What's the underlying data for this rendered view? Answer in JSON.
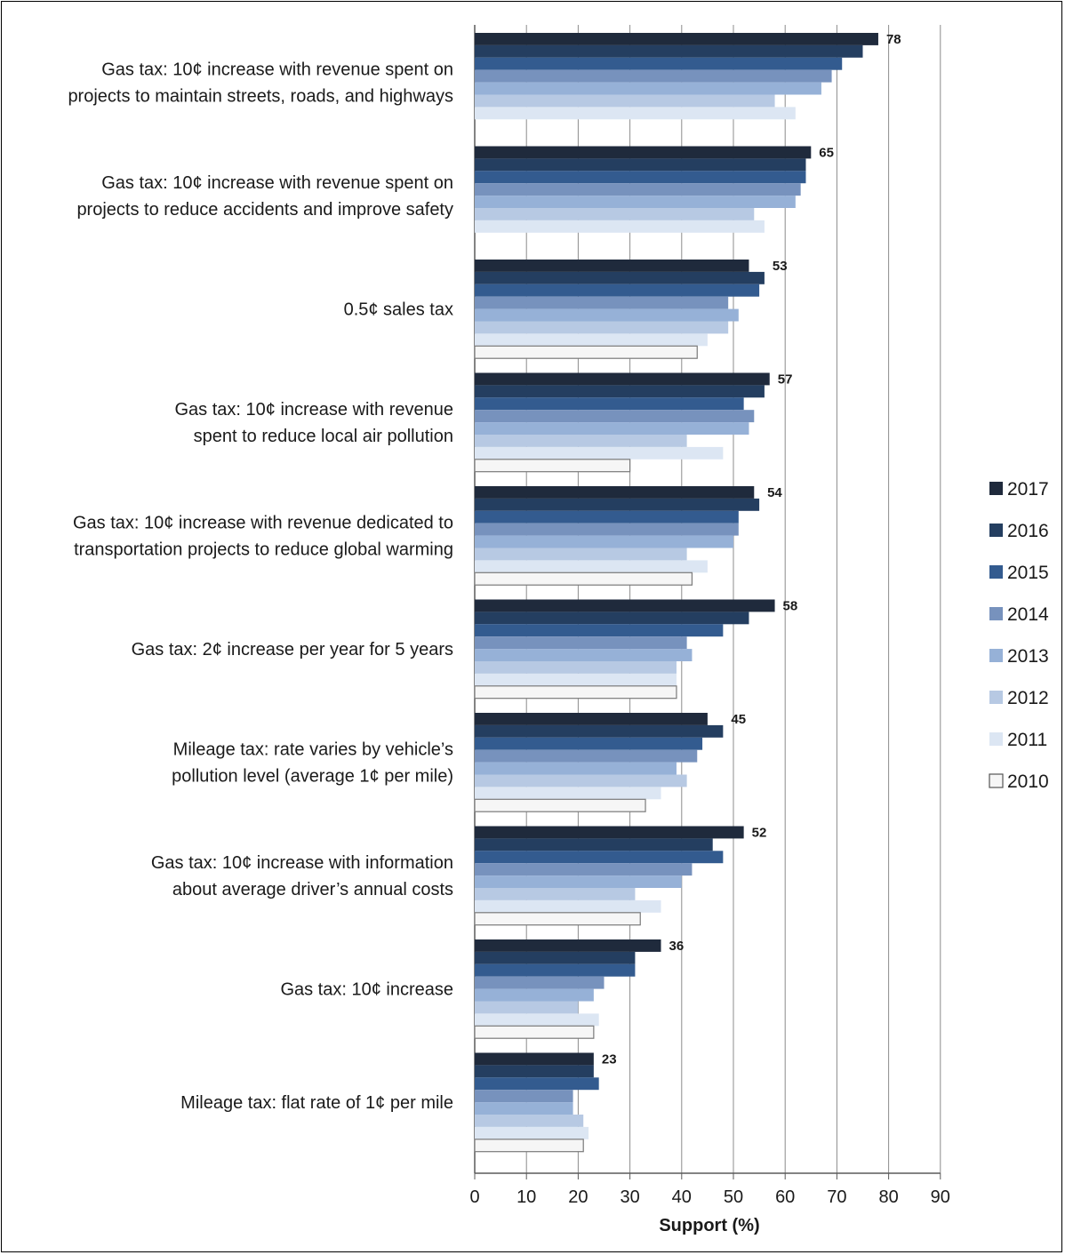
{
  "chart_data": {
    "type": "bar",
    "orientation": "horizontal",
    "title": "",
    "xlabel": "Support (%)",
    "ylabel": "",
    "xlim": [
      0,
      90
    ],
    "x_ticks": [
      "0",
      "10",
      "20",
      "30",
      "40",
      "50",
      "60",
      "70",
      "80",
      "90"
    ],
    "grid": "vertical",
    "legend_position": "right",
    "categories": [
      [
        "Gas tax: 10¢ increase with revenue spent on",
        "projects to maintain streets, roads, and highways"
      ],
      [
        "Gas tax: 10¢ increase with revenue spent on",
        "projects to reduce accidents and improve safety"
      ],
      [
        "0.5¢ sales tax"
      ],
      [
        "Gas tax: 10¢ increase with revenue",
        "spent to reduce local air pollution"
      ],
      [
        "Gas tax: 10¢ increase with revenue dedicated to",
        "transportation projects to reduce global warming"
      ],
      [
        "Gas tax: 2¢ increase per year for 5 years"
      ],
      [
        "Mileage tax: rate varies by vehicle’s",
        "pollution level (average 1¢ per mile)"
      ],
      [
        "Gas tax: 10¢ increase with information",
        "about average driver’s annual costs"
      ],
      [
        "Gas tax: 10¢ increase"
      ],
      [
        "Mileage tax: flat rate of 1¢ per mile"
      ]
    ],
    "series": [
      {
        "name": "2017",
        "color": "#1f2a3c",
        "values": [
          78,
          65,
          53,
          57,
          54,
          58,
          45,
          52,
          36,
          23
        ]
      },
      {
        "name": "2016",
        "color": "#243e60",
        "values": [
          75,
          64,
          56,
          56,
          55,
          53,
          48,
          46,
          31,
          23
        ]
      },
      {
        "name": "2015",
        "color": "#335b8f",
        "values": [
          71,
          64,
          55,
          52,
          51,
          48,
          44,
          48,
          31,
          24
        ]
      },
      {
        "name": "2014",
        "color": "#7792bd",
        "values": [
          69,
          63,
          49,
          54,
          51,
          41,
          43,
          42,
          25,
          19
        ]
      },
      {
        "name": "2013",
        "color": "#96b1d7",
        "values": [
          67,
          62,
          51,
          53,
          50,
          42,
          39,
          40,
          23,
          19
        ]
      },
      {
        "name": "2012",
        "color": "#b7c9e3",
        "values": [
          58,
          54,
          49,
          41,
          41,
          39,
          41,
          31,
          20,
          21
        ]
      },
      {
        "name": "2011",
        "color": "#dce6f3",
        "values": [
          62,
          56,
          45,
          48,
          45,
          39,
          36,
          36,
          24,
          22
        ]
      },
      {
        "name": "2010",
        "color": "#f6f6f6",
        "values": [
          null,
          null,
          43,
          30,
          42,
          39,
          33,
          32,
          23,
          21
        ]
      }
    ],
    "data_labels": [
      "78",
      "65",
      "53",
      "57",
      "54",
      "58",
      "45",
      "52",
      "36",
      "23"
    ]
  }
}
